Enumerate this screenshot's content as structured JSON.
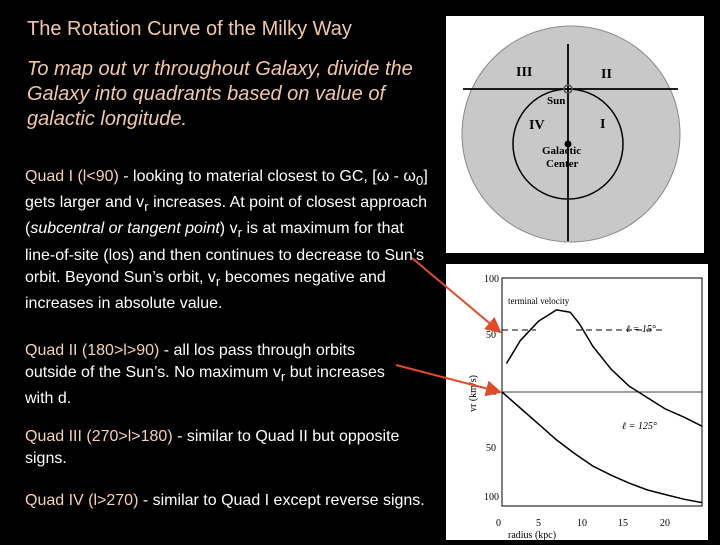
{
  "slide": {
    "title": "The Rotation Curve of the Milky Way",
    "subtitle": "To map out vr throughout Galaxy, divide the Galaxy into quadrants based on value of galactic longitude.",
    "quad1": {
      "label": "Quad I (l<90)",
      "text_a": " - looking to material closest to GC, [ω - ω",
      "sub_a": "0",
      "text_b": "] gets larger and v",
      "sub_b": "r",
      "text_c": " increases.  At point of closest approach (",
      "italic": "subcentral or tangent point",
      "text_d": ") v",
      "sub_d": "r",
      "text_e": " is at maximum for that line-of-site (los) and then continues to decrease to Sun’s orbit.  Beyond Sun’s orbit, v",
      "sub_e": "r",
      "text_f": " becomes negative and increases in absolute value."
    },
    "quad2": {
      "label": "Quad II (180>l>90)",
      "text_a": " - all los pass through orbits outside of the Sun’s.  No maximum v",
      "sub_a": "r",
      "text_b": " but increases with d."
    },
    "quad3": {
      "label": "Quad III (270>l>180)",
      "text": " - similar to Quad II but opposite signs."
    },
    "quad4": {
      "label": "Quad IV (l>270)",
      "text": " - similar to Quad I except reverse signs."
    }
  },
  "galaxy_diagram": {
    "quadrants": [
      "III",
      "II",
      "IV",
      "I"
    ],
    "sun_label": "Sun",
    "center_label_1": "Galactic",
    "center_label_2": "Center"
  },
  "chart_data": {
    "type": "line",
    "xlabel": "radius (kpc)",
    "ylabel": "vr (km/s)",
    "x_ticks": [
      "0",
      "5",
      "10",
      "15",
      "20"
    ],
    "y_ticks": [
      "100",
      "50",
      "0",
      "50",
      "100"
    ],
    "xlim": [
      0,
      22
    ],
    "ylim": [
      -100,
      100
    ],
    "annotation": "terminal velocity",
    "series": [
      {
        "name": "ℓ = 15°",
        "x": [
          0.5,
          2,
          4,
          6,
          7.5,
          8.5,
          10,
          12,
          14,
          16,
          18,
          20,
          22
        ],
        "y": [
          25,
          45,
          62,
          72,
          70,
          60,
          40,
          20,
          5,
          -5,
          -15,
          -22,
          -30
        ]
      },
      {
        "name": "ℓ = 125°",
        "x": [
          0,
          2,
          4,
          6,
          8,
          10,
          12,
          14,
          16,
          18,
          20,
          22
        ],
        "y": [
          0,
          -14,
          -28,
          -42,
          -54,
          -65,
          -73,
          -80,
          -86,
          -90,
          -94,
          -97
        ]
      }
    ]
  }
}
